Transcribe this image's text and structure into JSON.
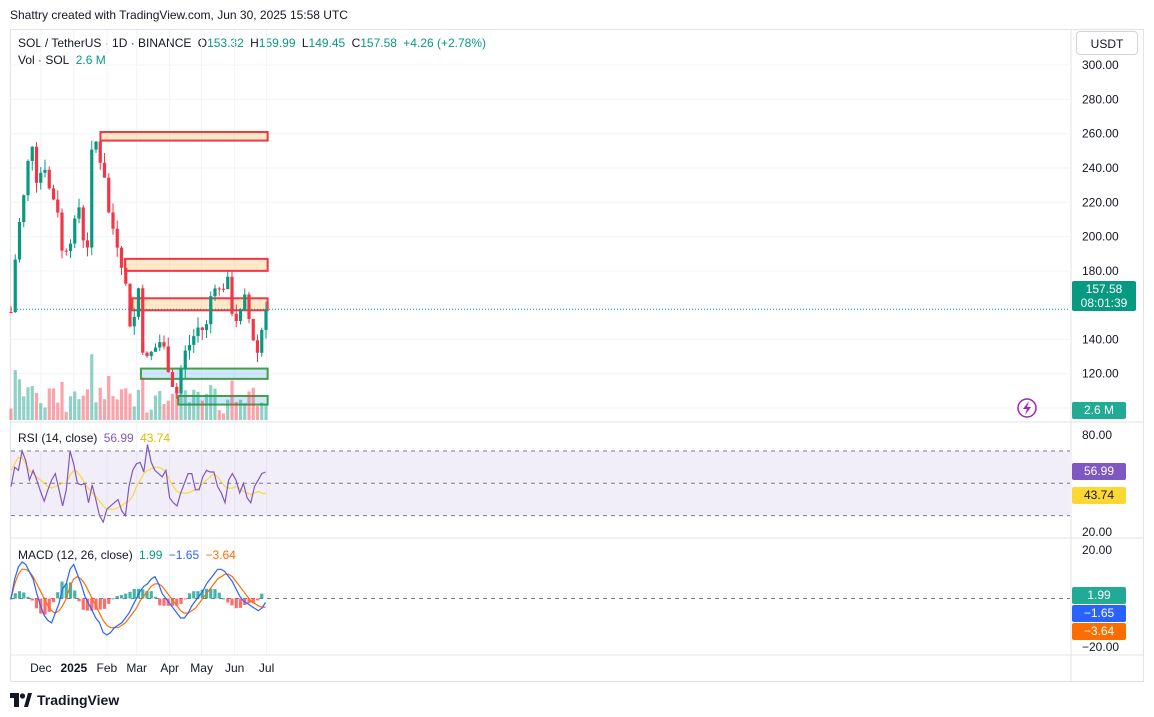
{
  "header": {
    "created_by": "Shattry created with TradingView.com, Jun 30, 2025 15:58 UTC"
  },
  "currency_button": "USDT",
  "legend": {
    "symbol": "SOL / TetherUS · 1D · BINANCE",
    "o_label": "O",
    "o": "153.32",
    "h_label": "H",
    "h": "159.99",
    "l_label": "L",
    "l": "149.45",
    "c_label": "C",
    "c": "157.58",
    "change": "+4.26 (+2.78%)",
    "vol_label": "Vol · SOL",
    "vol": "2.6 M"
  },
  "rsi_legend": {
    "label": "RSI (14, close)",
    "rsi": "56.99",
    "ma": "43.74"
  },
  "macd_legend": {
    "label": "MACD (12, 26, close)",
    "hist": "1.99",
    "macd": "−1.65",
    "signal": "−3.64"
  },
  "price_badge": {
    "price": "157.58",
    "countdown": "08:01:39"
  },
  "volume_badge": "2.6 M",
  "rsi_badges": {
    "rsi": "56.99",
    "ma": "43.74"
  },
  "macd_badges": {
    "hist": "1.99",
    "macd": "−1.65",
    "signal": "−3.64"
  },
  "footer": {
    "brand": "TradingView"
  },
  "colors": {
    "up": "#089981",
    "down": "#f23645",
    "rsi": "#7e57c2",
    "rsi_ma": "#fdd835",
    "macd": "#2962ff",
    "signal": "#ff6d00"
  },
  "chart_data": {
    "type": "candlestick",
    "price_axis": {
      "ticks": [
        "300.00",
        "280.00",
        "260.00",
        "240.00",
        "220.00",
        "200.00",
        "180.00",
        "160.00",
        "140.00",
        "120.00",
        "100.00"
      ],
      "ylim": [
        93,
        303
      ]
    },
    "time_axis": {
      "labels": [
        "Dec",
        "2025",
        "Feb",
        "Mar",
        "Apr",
        "May",
        "Jun",
        "Jul"
      ],
      "labels_bold": [
        false,
        true,
        false,
        false,
        false,
        false,
        false,
        false
      ]
    },
    "price_series": [
      {
        "date": "2024-11-03",
        "close": 156
      },
      {
        "date": "2024-11-08",
        "close": 195
      },
      {
        "date": "2024-11-12",
        "close": 212
      },
      {
        "date": "2024-11-17",
        "close": 230
      },
      {
        "date": "2024-11-22",
        "close": 262
      },
      {
        "date": "2024-11-26",
        "close": 234
      },
      {
        "date": "2024-12-01",
        "close": 238
      },
      {
        "date": "2024-12-06",
        "close": 243
      },
      {
        "date": "2024-12-10",
        "close": 222
      },
      {
        "date": "2024-12-16",
        "close": 224
      },
      {
        "date": "2024-12-20",
        "close": 190
      },
      {
        "date": "2024-12-25",
        "close": 195
      },
      {
        "date": "2025-01-01",
        "close": 204
      },
      {
        "date": "2025-01-06",
        "close": 218
      },
      {
        "date": "2025-01-13",
        "close": 185
      },
      {
        "date": "2025-01-19",
        "close": 262
      },
      {
        "date": "2025-01-23",
        "close": 252
      },
      {
        "date": "2025-01-30",
        "close": 236
      },
      {
        "date": "2025-02-03",
        "close": 212
      },
      {
        "date": "2025-02-10",
        "close": 199
      },
      {
        "date": "2025-02-17",
        "close": 180
      },
      {
        "date": "2025-02-25",
        "close": 139
      },
      {
        "date": "2025-03-02",
        "close": 179
      },
      {
        "date": "2025-03-05",
        "close": 141
      },
      {
        "date": "2025-03-10",
        "close": 127
      },
      {
        "date": "2025-03-17",
        "close": 134
      },
      {
        "date": "2025-03-24",
        "close": 140
      },
      {
        "date": "2025-03-31",
        "close": 124
      },
      {
        "date": "2025-04-07",
        "close": 107
      },
      {
        "date": "2025-04-14",
        "close": 130
      },
      {
        "date": "2025-04-21",
        "close": 139
      },
      {
        "date": "2025-04-28",
        "close": 147
      },
      {
        "date": "2025-05-05",
        "close": 145
      },
      {
        "date": "2025-05-12",
        "close": 176
      },
      {
        "date": "2025-05-19",
        "close": 166
      },
      {
        "date": "2025-05-24",
        "close": 178
      },
      {
        "date": "2025-05-30",
        "close": 156
      },
      {
        "date": "2025-06-05",
        "close": 150
      },
      {
        "date": "2025-06-10",
        "close": 164
      },
      {
        "date": "2025-06-16",
        "close": 148
      },
      {
        "date": "2025-06-22",
        "close": 131
      },
      {
        "date": "2025-06-26",
        "close": 145
      },
      {
        "date": "2025-06-30",
        "close": 157.58
      }
    ],
    "zones": [
      {
        "type": "resistance",
        "top": 261,
        "bottom": 256,
        "start": "2025-01-26",
        "end": "2025-07-02"
      },
      {
        "type": "resistance",
        "top": 187,
        "bottom": 180,
        "start": "2025-02-18",
        "end": "2025-07-02"
      },
      {
        "type": "resistance",
        "top": 164,
        "bottom": 157,
        "start": "2025-02-25",
        "end": "2025-07-02"
      },
      {
        "type": "support",
        "top": 123,
        "bottom": 117,
        "start": "2025-03-05",
        "end": "2025-07-02"
      },
      {
        "type": "support",
        "top": 107,
        "bottom": 102,
        "start": "2025-04-09",
        "end": "2025-07-02"
      }
    ],
    "last_price": 157.58,
    "rsi_axis": {
      "ticks": [
        "80.00",
        "20.00"
      ],
      "ylim": [
        18,
        83
      ],
      "bands": [
        70,
        50,
        30
      ]
    },
    "rsi_series": [
      48,
      60,
      58,
      70,
      64,
      52,
      58,
      52,
      45,
      39,
      46,
      52,
      56,
      46,
      36,
      46,
      70,
      62,
      50,
      49,
      50,
      38,
      49,
      40,
      30,
      26,
      34,
      36,
      38,
      40,
      33,
      30,
      48,
      58,
      62,
      63,
      57,
      74,
      63,
      58,
      56,
      54,
      58,
      41,
      38,
      36,
      44,
      50,
      56,
      56,
      46,
      46,
      54,
      58,
      57,
      57,
      48,
      44,
      38,
      52,
      56,
      52,
      44,
      50,
      41,
      38,
      48,
      52,
      56,
      57
    ],
    "rsi_ma_series": [
      58,
      62,
      66,
      66,
      62,
      58,
      56,
      54,
      52,
      50,
      48,
      47,
      48,
      49,
      50,
      50,
      55,
      58,
      57,
      54,
      50,
      47,
      44,
      42,
      39,
      36,
      34,
      34,
      34,
      35,
      36,
      38,
      39,
      42,
      48,
      52,
      56,
      58,
      59,
      60,
      60,
      59,
      57,
      52,
      48,
      45,
      44,
      44,
      44,
      45,
      46,
      47,
      50,
      52,
      54,
      56,
      54,
      51,
      48,
      47,
      47,
      48,
      47,
      45,
      44,
      43,
      44,
      45,
      44,
      43.74
    ],
    "macd_axis": {
      "ticks": [
        "20.00",
        "−20.00"
      ],
      "ylim": [
        -22,
        22
      ]
    },
    "macd_series": [
      0,
      8,
      13,
      15,
      14,
      11,
      8,
      2,
      -3,
      -7,
      -9,
      -10,
      -6,
      -2,
      4,
      6,
      12,
      14,
      10,
      6,
      1,
      -2,
      -5,
      -8,
      -10,
      -14,
      -15,
      -14,
      -12,
      -11,
      -10,
      -8,
      -6,
      -3,
      0,
      3,
      5,
      6,
      8,
      9,
      6,
      2,
      0,
      -2,
      -4,
      -6,
      -8,
      -8,
      -6,
      -3,
      -1,
      1,
      3,
      6,
      8,
      10,
      12,
      12,
      11,
      9,
      7,
      4,
      1,
      -1,
      -2,
      -3,
      -4,
      -5,
      -4,
      -1.65
    ],
    "signal_series": [
      0,
      6,
      10,
      12,
      12,
      11,
      9,
      6,
      3,
      0,
      -3,
      -5,
      -6,
      -5,
      -3,
      0,
      5,
      8,
      9,
      8,
      6,
      3,
      0,
      -3,
      -6,
      -9,
      -11,
      -12,
      -12,
      -12,
      -11,
      -10,
      -8,
      -6,
      -4,
      -1,
      1,
      3,
      5,
      6,
      6,
      5,
      3,
      1,
      -1,
      -3,
      -5,
      -6,
      -6,
      -5,
      -4,
      -2,
      0,
      2,
      4,
      6,
      8,
      9,
      10,
      10,
      9,
      7,
      5,
      3,
      1,
      -1,
      -2,
      -3,
      -3.5,
      -3.64
    ],
    "macd_hist_last": 1.99
  }
}
